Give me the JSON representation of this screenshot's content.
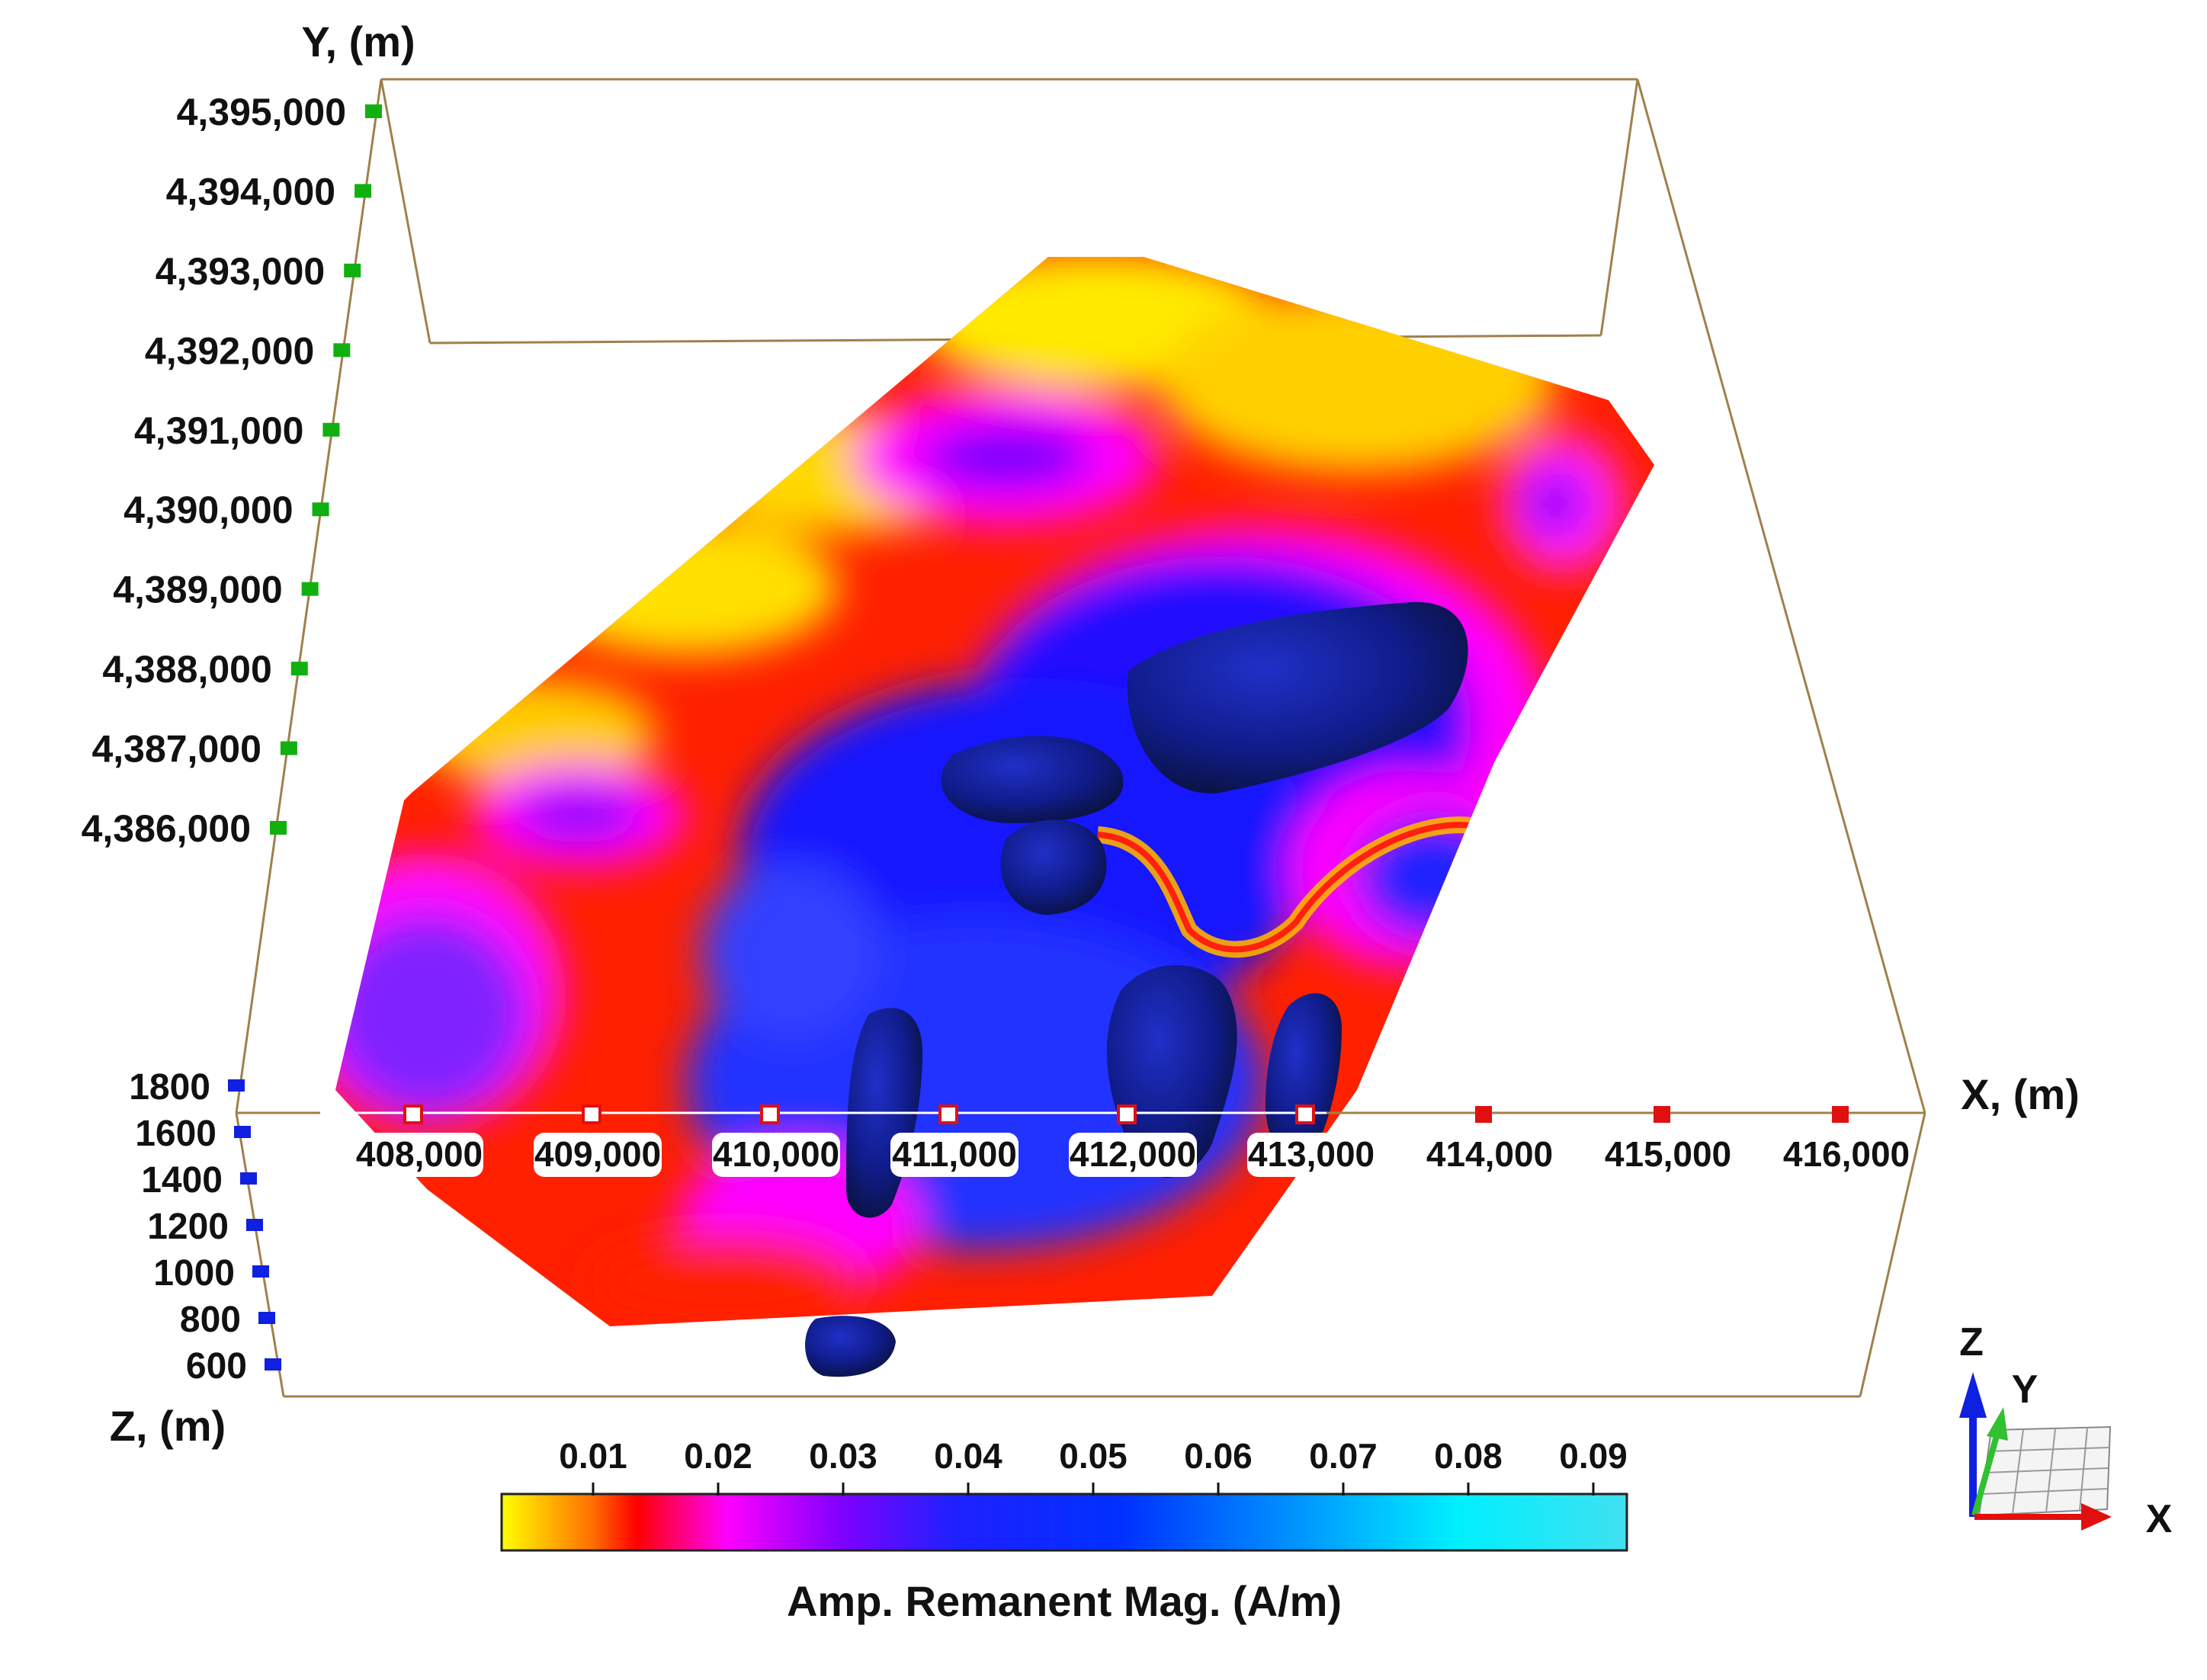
{
  "chart_data": {
    "type": "heatmap",
    "title": "",
    "axes": {
      "x": {
        "label": "X, (m)",
        "ticks": [
          "408,000",
          "409,000",
          "410,000",
          "411,000",
          "412,000",
          "413,000",
          "414,000",
          "415,000",
          "416,000"
        ]
      },
      "y": {
        "label": "Y, (m)",
        "ticks": [
          "4,395,000",
          "4,394,000",
          "4,393,000",
          "4,392,000",
          "4,391,000",
          "4,390,000",
          "4,389,000",
          "4,388,000",
          "4,387,000",
          "4,386,000"
        ]
      },
      "z": {
        "label": "Z, (m)",
        "ticks": [
          "1800",
          "1600",
          "1400",
          "1200",
          "1000",
          "800",
          "600"
        ]
      }
    },
    "colorbar": {
      "label": "Amp. Remanent Mag. (A/m)",
      "ticks": [
        "0.01",
        "0.02",
        "0.03",
        "0.04",
        "0.05",
        "0.06",
        "0.07",
        "0.08",
        "0.09"
      ],
      "range": [
        0,
        0.09
      ],
      "colors": [
        "#ffff00",
        "#ff7000",
        "#ff0000",
        "#ff00ff",
        "#8000ff",
        "#1010ff",
        "#0050ff",
        "#00c8ff",
        "#00ffff"
      ]
    },
    "colors": {
      "x_axis": "#e01010",
      "y_axis": "#10b010",
      "z_axis": "#1020e0",
      "box": "#a0804c"
    }
  },
  "orientation_widget": {
    "labels": {
      "z": "Z",
      "y": "Y",
      "x": "X"
    }
  }
}
